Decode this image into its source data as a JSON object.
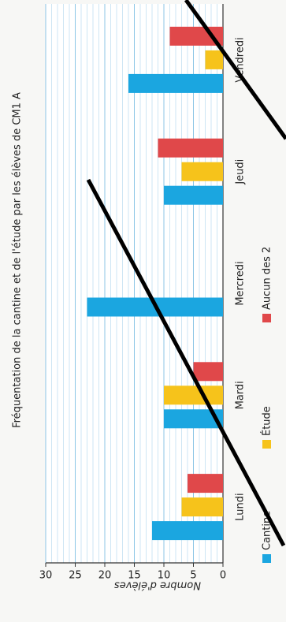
{
  "chart_data": {
    "type": "bar",
    "title": "Fréquentation de la cantine et de l'étude par les élèves de CM1 A",
    "y_label": "Nombre d'élèves",
    "categories": [
      "Lundi",
      "Mardi",
      "Mercredi",
      "Jeudi",
      "Vendredi"
    ],
    "series": [
      {
        "name": "Cantine",
        "color": "#1ba6e0",
        "values": [
          12,
          10,
          23,
          10,
          16
        ]
      },
      {
        "name": "Étude",
        "color": "#f6c31b",
        "values": [
          7,
          10,
          0,
          7,
          3
        ]
      },
      {
        "name": "Aucun des 2",
        "color": "#e0484a",
        "values": [
          6,
          5,
          0,
          11,
          9
        ]
      }
    ],
    "ylim": [
      0,
      30
    ],
    "yticks": [
      0,
      5,
      10,
      15,
      20,
      25,
      30
    ],
    "grid": true
  }
}
